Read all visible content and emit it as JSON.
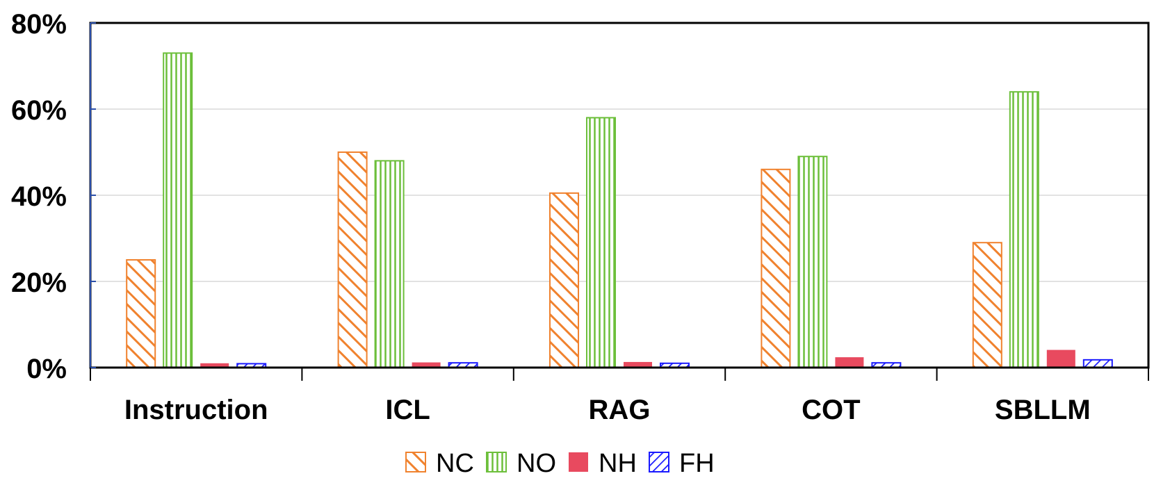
{
  "chart_data": {
    "type": "bar",
    "title": "",
    "xlabel": "",
    "ylabel": "",
    "ylim": [
      0,
      80
    ],
    "yticks": [
      "0%",
      "20%",
      "40%",
      "60%",
      "80%"
    ],
    "ytick_values": [
      0,
      20,
      40,
      60,
      80
    ],
    "grid": true,
    "legend_position": "bottom-center",
    "categories": [
      "Instruction",
      "ICL",
      "RAG",
      "COT",
      "SBLLM"
    ],
    "series": [
      {
        "name": "NC",
        "color": "#f0822e",
        "pattern": "diagonal-backslash",
        "values": [
          25,
          50,
          40.5,
          46,
          29
        ]
      },
      {
        "name": "NO",
        "color": "#6cbf3a",
        "pattern": "vertical-lines",
        "values": [
          73,
          48,
          58,
          49,
          64
        ]
      },
      {
        "name": "NH",
        "color": "#e84a5f",
        "pattern": "solid",
        "values": [
          1,
          1.2,
          1.3,
          2.4,
          4.1
        ]
      },
      {
        "name": "FH",
        "color": "#1a1aff",
        "pattern": "diagonal-slash",
        "values": [
          0.9,
          1.1,
          1.0,
          1.1,
          1.8
        ]
      }
    ]
  }
}
